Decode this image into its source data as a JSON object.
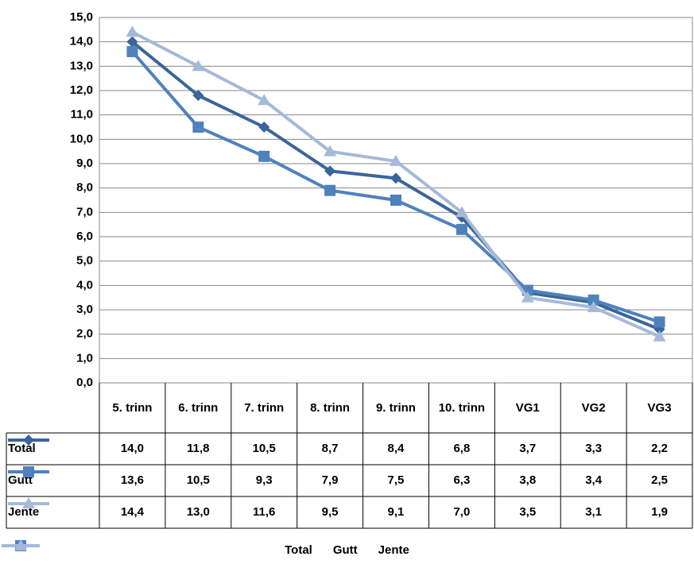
{
  "chart_data": {
    "type": "line",
    "categories": [
      "5. trinn",
      "6. trinn",
      "7. trinn",
      "8. trinn",
      "9. trinn",
      "10. trinn",
      "VG1",
      "VG2",
      "VG3"
    ],
    "series": [
      {
        "name": "Total",
        "color": "#3a6599",
        "marker": "diamond",
        "values": [
          14.0,
          11.8,
          10.5,
          8.7,
          8.4,
          6.8,
          3.7,
          3.3,
          2.2
        ],
        "value_labels": [
          "14,0",
          "11,8",
          "10,5",
          "8,7",
          "8,4",
          "6,8",
          "3,7",
          "3,3",
          "2,2"
        ]
      },
      {
        "name": "Gutt",
        "color": "#4f81bd",
        "marker": "square",
        "values": [
          13.6,
          10.5,
          9.3,
          7.9,
          7.5,
          6.3,
          3.8,
          3.4,
          2.5
        ],
        "value_labels": [
          "13,6",
          "10,5",
          "9,3",
          "7,9",
          "7,5",
          "6,3",
          "3,8",
          "3,4",
          "2,5"
        ]
      },
      {
        "name": "Jente",
        "color": "#a5b9d9",
        "marker": "triangle",
        "values": [
          14.4,
          13.0,
          11.6,
          9.5,
          9.1,
          7.0,
          3.5,
          3.1,
          1.9
        ],
        "value_labels": [
          "14,4",
          "13,0",
          "11,6",
          "9,5",
          "9,1",
          "7,0",
          "3,5",
          "3,1",
          "1,9"
        ]
      }
    ],
    "ylim": [
      0,
      15
    ],
    "yticks": [
      {
        "value": 0,
        "label": "0,0"
      },
      {
        "value": 1,
        "label": "1,0"
      },
      {
        "value": 2,
        "label": "2,0"
      },
      {
        "value": 3,
        "label": "3,0"
      },
      {
        "value": 4,
        "label": "4,0"
      },
      {
        "value": 5,
        "label": "5,0"
      },
      {
        "value": 6,
        "label": "6,0"
      },
      {
        "value": 7,
        "label": "7,0"
      },
      {
        "value": 8,
        "label": "8,0"
      },
      {
        "value": 9,
        "label": "9,0"
      },
      {
        "value": 10,
        "label": "10,0"
      },
      {
        "value": 11,
        "label": "11,0"
      },
      {
        "value": 12,
        "label": "12,0"
      },
      {
        "value": 13,
        "label": "13,0"
      },
      {
        "value": 14,
        "label": "14,0"
      },
      {
        "value": 15,
        "label": "15,0"
      }
    ],
    "grid": true,
    "legend": "bottom",
    "data_table": true
  }
}
